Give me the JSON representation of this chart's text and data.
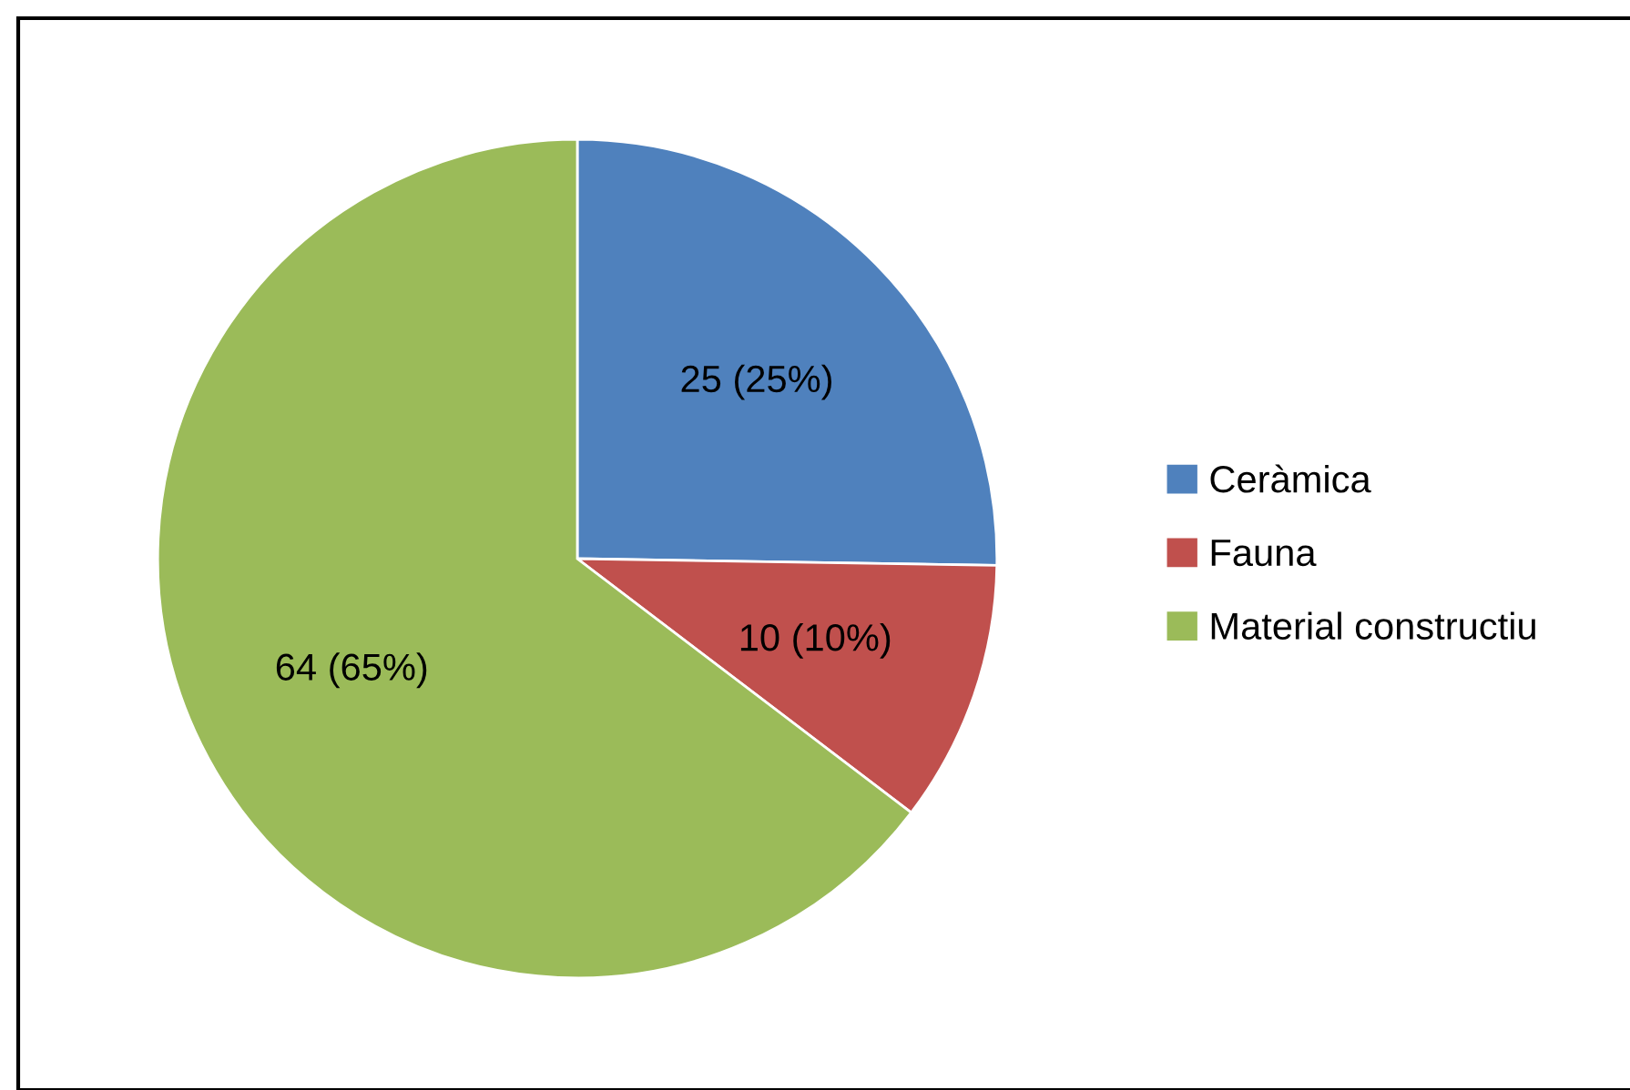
{
  "chart_data": {
    "type": "pie",
    "categories": [
      "Ceràmica",
      "Fauna",
      "Material constructiu"
    ],
    "values": [
      25,
      10,
      64
    ],
    "colors": [
      "#4f81bd",
      "#c0504d",
      "#9bbb59"
    ],
    "value_labels": [
      "25 (25%)",
      "10 (10%)",
      "64 (65%)"
    ],
    "legend": "right"
  }
}
